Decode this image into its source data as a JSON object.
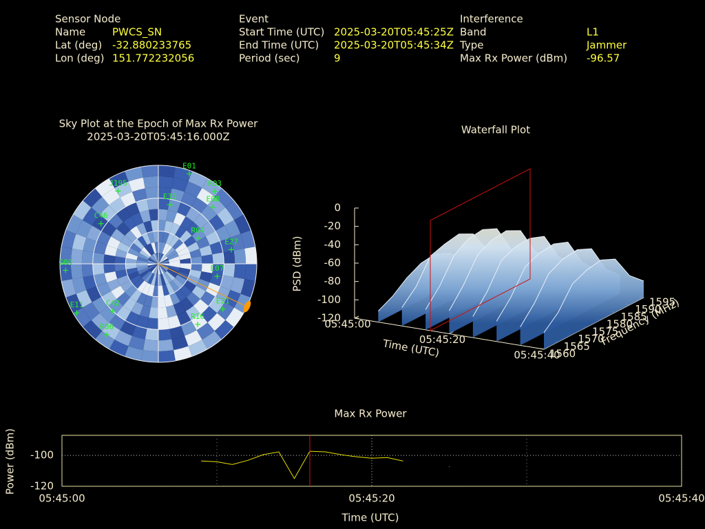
{
  "info": {
    "sensor_node": {
      "heading": "Sensor Node",
      "rows": [
        [
          "Name",
          "PWCS_SN"
        ],
        [
          "Lat (deg)",
          "-32.880233765"
        ],
        [
          "Lon (deg)",
          "151.772232056"
        ]
      ]
    },
    "event": {
      "heading": "Event",
      "rows": [
        [
          "Start Time (UTC)",
          "2025-03-20T05:45:25Z"
        ],
        [
          "End Time (UTC)",
          "2025-03-20T05:45:34Z"
        ],
        [
          "Period (sec)",
          "9"
        ]
      ]
    },
    "interference": {
      "heading": "Interference",
      "rows": [
        [
          "Band",
          "L1"
        ],
        [
          "Type",
          "Jammer"
        ],
        [
          "Max Rx Power (dBm)",
          "-96.57"
        ]
      ]
    }
  },
  "chart_data": [
    {
      "type": "skyplot",
      "title": "Sky Plot at the Epoch of Max Rx Power",
      "subtitle": "2025-03-20T05:45:16.000Z",
      "rings": [
        0,
        30,
        60
      ],
      "color": "#22ee22",
      "satellites": [
        {
          "name": "E01",
          "azimuth": 19,
          "elevation": 3
        },
        {
          "name": "R03",
          "azimuth": 38,
          "elevation": 6
        },
        {
          "name": "E08",
          "azimuth": 44,
          "elevation": 18
        },
        {
          "name": "J195",
          "azimuth": 331,
          "elevation": 14
        },
        {
          "name": "E33",
          "azimuth": 11,
          "elevation": 35
        },
        {
          "name": "C46",
          "azimuth": 305,
          "elevation": 26
        },
        {
          "name": "R04",
          "azimuth": 57,
          "elevation": 47
        },
        {
          "name": "E27",
          "azimuth": 79,
          "elevation": 22
        },
        {
          "name": "E07",
          "azimuth": 102,
          "elevation": 35
        },
        {
          "name": "E21",
          "azimuth": 125,
          "elevation": 18
        },
        {
          "name": "R16",
          "azimuth": 147,
          "elevation": 24
        },
        {
          "name": "E11",
          "azimuth": 239,
          "elevation": 3
        },
        {
          "name": "R06",
          "azimuth": 216,
          "elevation": 10
        },
        {
          "name": "G09",
          "azimuth": 266,
          "elevation": 5
        },
        {
          "name": "C42",
          "azimuth": 224,
          "elevation": 30
        }
      ]
    },
    {
      "type": "waterfall",
      "title": "Waterfall Plot",
      "xlabel": "Time (UTC)",
      "ylabel": "Frequency (MHz)",
      "zlabel": "PSD (dBm)",
      "x": [
        5,
        10,
        15,
        20,
        25,
        30,
        35,
        40
      ],
      "y": [
        1560,
        1565,
        1570,
        1575,
        1580,
        1585,
        1590,
        1595
      ],
      "z": [
        [
          -108,
          -100,
          -88,
          -80,
          -78,
          -85,
          -100,
          -110
        ],
        [
          -100,
          -85,
          -60,
          -55,
          -52,
          -60,
          -85,
          -100
        ],
        [
          -98,
          -80,
          -55,
          -45,
          -43,
          -50,
          -80,
          -98
        ],
        [
          -95,
          -75,
          -50,
          -42,
          -40,
          -48,
          -78,
          -95
        ],
        [
          -97,
          -78,
          -52,
          -45,
          -44,
          -50,
          -80,
          -96
        ],
        [
          -98,
          -80,
          -55,
          -48,
          -46,
          -52,
          -82,
          -98
        ],
        [
          -100,
          -82,
          -58,
          -50,
          -48,
          -55,
          -85,
          -100
        ],
        [
          -102,
          -88,
          -65,
          -58,
          -55,
          -62,
          -88,
          -102
        ]
      ],
      "xlim": [
        0,
        40
      ],
      "xticks": [
        {
          "value": 0,
          "label": "05:45:00"
        },
        {
          "value": 20,
          "label": "05:45:20"
        },
        {
          "value": 40,
          "label": "05:45:40"
        }
      ],
      "ylim": [
        1560,
        1595
      ],
      "yticks": [
        1560,
        1565,
        1570,
        1575,
        1580,
        1585,
        1590,
        1595
      ],
      "zlim": [
        -120,
        0
      ],
      "zticks": [
        0,
        -20,
        -40,
        -60,
        -80,
        -100,
        -120
      ],
      "plane_x": 16,
      "plane_color": "#d01010"
    },
    {
      "type": "line",
      "title": "Max Rx Power",
      "xlabel": "Time (UTC)",
      "ylabel": "Power (dBm)",
      "x": [
        9,
        10,
        11,
        12,
        13,
        14,
        15,
        16,
        17,
        18,
        19,
        20,
        21,
        22,
        23,
        25
      ],
      "values": [
        -103.6,
        -104.1,
        -105.9,
        -103.2,
        -99.5,
        -97.7,
        -115,
        -97.3,
        -97.7,
        -99.5,
        -100.9,
        -101.8,
        -101.4,
        -103.6,
        null,
        -107.3
      ],
      "color": "#e8e000",
      "xlim": [
        0,
        40
      ],
      "xticks": [
        {
          "value": 0,
          "label": "05:45:00"
        },
        {
          "value": 20,
          "label": "05:45:20"
        },
        {
          "value": 40,
          "label": "05:45:40"
        }
      ],
      "xminorticks": [
        10,
        30
      ],
      "ylim": [
        -120,
        -87
      ],
      "yticks": [
        -100,
        -120
      ],
      "grid": true,
      "marker_x": 16,
      "marker_color": "#e01010"
    }
  ]
}
